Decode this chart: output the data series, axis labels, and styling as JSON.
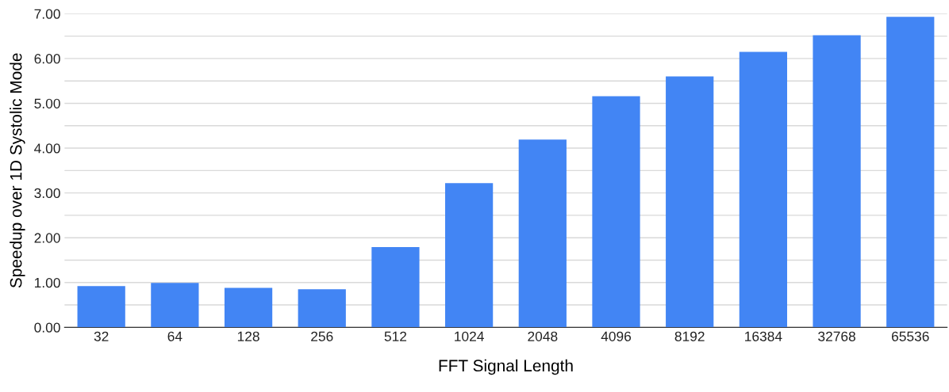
{
  "chart_data": {
    "type": "bar",
    "xlabel": "FFT Signal Length",
    "ylabel": "Speedup over 1D Systolic Mode",
    "categories": [
      "32",
      "64",
      "128",
      "256",
      "512",
      "1024",
      "2048",
      "4096",
      "8192",
      "16384",
      "32768",
      "65536"
    ],
    "values": [
      0.92,
      0.99,
      0.88,
      0.85,
      1.79,
      3.22,
      4.19,
      5.16,
      5.6,
      6.15,
      6.52,
      6.93
    ],
    "color": "#4285f4",
    "ylim": [
      0,
      7
    ],
    "yticks": [
      {
        "value": 0,
        "label": "0.00"
      },
      {
        "value": 0.5,
        "label": null
      },
      {
        "value": 1,
        "label": "1.00"
      },
      {
        "value": 1.5,
        "label": null
      },
      {
        "value": 2,
        "label": "2.00"
      },
      {
        "value": 2.5,
        "label": null
      },
      {
        "value": 3,
        "label": "3.00"
      },
      {
        "value": 3.5,
        "label": null
      },
      {
        "value": 4,
        "label": "4.00"
      },
      {
        "value": 4.5,
        "label": null
      },
      {
        "value": 5,
        "label": "5.00"
      },
      {
        "value": 5.5,
        "label": null
      },
      {
        "value": 6,
        "label": "6.00"
      },
      {
        "value": 6.5,
        "label": null
      },
      {
        "value": 7,
        "label": "7.00"
      }
    ],
    "grid": "y"
  }
}
